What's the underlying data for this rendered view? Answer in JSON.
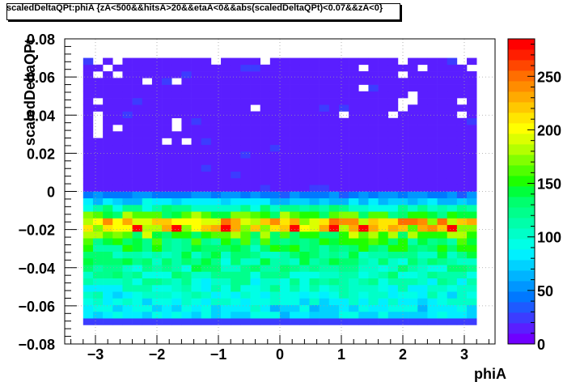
{
  "chart_data": {
    "type": "heatmap",
    "title": "scaledDeltaQPt:phiA {zA<500&&hitsA>20&&etaA<0&&abs(scaledDeltaQPt)<0.07&&zA<0}",
    "xlabel": "phiA",
    "ylabel": "scaledDeltaQPt",
    "xlim": [
      -3.5,
      3.5
    ],
    "ylim": [
      -0.08,
      0.08
    ],
    "x_bin_range": [
      -3.2,
      3.2
    ],
    "y_bin_range": [
      -0.07,
      0.07
    ],
    "x_bins": 40,
    "y_bins": 40,
    "x_ticks": [
      "−3",
      "−2",
      "−1",
      "0",
      "1",
      "2",
      "3"
    ],
    "x_tick_values": [
      -3,
      -2,
      -1,
      0,
      1,
      2,
      3
    ],
    "y_ticks": [
      "−0.08",
      "−0.06",
      "−0.04",
      "−0.02",
      "0",
      "0.02",
      "0.04",
      "0.06",
      "0.08"
    ],
    "y_tick_values": [
      -0.08,
      -0.06,
      -0.04,
      -0.02,
      0,
      0.02,
      0.04,
      0.06,
      0.08
    ],
    "z_range": [
      0,
      285
    ],
    "z_ticks": [
      "0",
      "50",
      "100",
      "150",
      "200",
      "250"
    ],
    "z_tick_values": [
      0,
      50,
      100,
      150,
      200,
      250
    ],
    "grid": true,
    "y_profile": [
      {
        "y": -0.0683,
        "z": 28
      },
      {
        "y": -0.0648,
        "z": 80
      },
      {
        "y": -0.0613,
        "z": 85
      },
      {
        "y": -0.0578,
        "z": 90
      },
      {
        "y": -0.0543,
        "z": 95
      },
      {
        "y": -0.0508,
        "z": 100
      },
      {
        "y": -0.0473,
        "z": 105
      },
      {
        "y": -0.0438,
        "z": 110
      },
      {
        "y": -0.0403,
        "z": 115
      },
      {
        "y": -0.0368,
        "z": 120
      },
      {
        "y": -0.0333,
        "z": 125
      },
      {
        "y": -0.0298,
        "z": 132
      },
      {
        "y": -0.0263,
        "z": 140
      },
      {
        "y": -0.0228,
        "z": 160
      },
      {
        "y": -0.0193,
        "z": 200
      },
      {
        "y": -0.0158,
        "z": 210
      },
      {
        "y": -0.0123,
        "z": 150
      },
      {
        "y": -0.0088,
        "z": 110
      },
      {
        "y": -0.0053,
        "z": 75
      },
      {
        "y": -0.0018,
        "z": 48
      },
      {
        "y": 0.0018,
        "z": 12
      },
      {
        "y": 0.0053,
        "z": 12
      },
      {
        "y": 0.0088,
        "z": 12
      },
      {
        "y": 0.0123,
        "z": 12
      },
      {
        "y": 0.0158,
        "z": 12
      },
      {
        "y": 0.0193,
        "z": 12
      },
      {
        "y": 0.0228,
        "z": 12
      },
      {
        "y": 0.0263,
        "z": 10
      },
      {
        "y": 0.0298,
        "z": 10
      },
      {
        "y": 0.0333,
        "z": 10
      },
      {
        "y": 0.0368,
        "z": 10
      },
      {
        "y": 0.0403,
        "z": 10
      },
      {
        "y": 0.0438,
        "z": 10
      },
      {
        "y": 0.0473,
        "z": 10
      },
      {
        "y": 0.0508,
        "z": 10
      },
      {
        "y": 0.0543,
        "z": 10
      },
      {
        "y": 0.0578,
        "z": 10
      },
      {
        "y": 0.0613,
        "z": 10
      },
      {
        "y": 0.0648,
        "z": 10
      },
      {
        "y": 0.0683,
        "z": 10
      }
    ],
    "peak_cells_phi": [
      -2.3,
      -1.7,
      -0.9,
      0.2,
      0.8,
      1.3,
      2.8
    ],
    "peak_value_y": -0.0193,
    "peak_value_z": 280,
    "empty_cells": [
      {
        "x": -3.04,
        "y": 0.0683
      },
      {
        "x": -2.72,
        "y": 0.0683
      },
      {
        "x": -1.12,
        "y": 0.0683
      },
      {
        "x": -0.32,
        "y": 0.0683
      },
      {
        "x": 1.92,
        "y": 0.0683
      },
      {
        "x": 2.88,
        "y": 0.0683
      },
      {
        "x": -2.88,
        "y": 0.0648
      },
      {
        "x": 1.28,
        "y": 0.0648
      },
      {
        "x": 2.24,
        "y": 0.0648
      },
      {
        "x": 3.04,
        "y": 0.0648
      },
      {
        "x": -3.04,
        "y": 0.0613
      },
      {
        "x": -2.72,
        "y": 0.0613
      },
      {
        "x": 1.92,
        "y": 0.0613
      },
      {
        "x": -2.24,
        "y": 0.0578
      },
      {
        "x": -1.76,
        "y": 0.0578
      },
      {
        "x": 1.28,
        "y": 0.0543
      },
      {
        "x": 2.08,
        "y": 0.0508
      },
      {
        "x": -3.04,
        "y": 0.0473
      },
      {
        "x": 1.92,
        "y": 0.0473
      },
      {
        "x": 2.08,
        "y": 0.0473
      },
      {
        "x": 2.88,
        "y": 0.0473
      },
      {
        "x": -0.48,
        "y": 0.0438
      },
      {
        "x": 1.92,
        "y": 0.0438
      },
      {
        "x": -3.04,
        "y": 0.0403
      },
      {
        "x": 0.96,
        "y": 0.0403
      },
      {
        "x": 1.76,
        "y": 0.0403
      },
      {
        "x": 2.88,
        "y": 0.0403
      },
      {
        "x": -3.04,
        "y": 0.0368
      },
      {
        "x": -1.76,
        "y": 0.0368
      },
      {
        "x": -3.04,
        "y": 0.0333
      },
      {
        "x": -2.72,
        "y": 0.0333
      },
      {
        "x": -1.76,
        "y": 0.0333
      },
      {
        "x": -3.04,
        "y": 0.0298
      },
      {
        "x": -1.92,
        "y": 0.0263
      },
      {
        "x": -1.6,
        "y": 0.0263
      }
    ],
    "colors": {
      "palette": [
        "#6f00ff",
        "#5a1eff",
        "#3c3cff",
        "#1e5aff",
        "#0078ff",
        "#0096ff",
        "#00b4ff",
        "#00d2ff",
        "#00f0ff",
        "#00ffe6",
        "#00ffc8",
        "#00ffaa",
        "#00ff8c",
        "#00ff6e",
        "#00ff3c",
        "#1eff00",
        "#50ff00",
        "#82ff00",
        "#b4ff00",
        "#dcff00",
        "#ffff00",
        "#ffe600",
        "#ffc800",
        "#ffaa00",
        "#ff8c00",
        "#ff6e00",
        "#ff4600",
        "#ff1e00",
        "#ff0000"
      ],
      "frame": "#000000",
      "grid": "#a0a0a0"
    }
  }
}
